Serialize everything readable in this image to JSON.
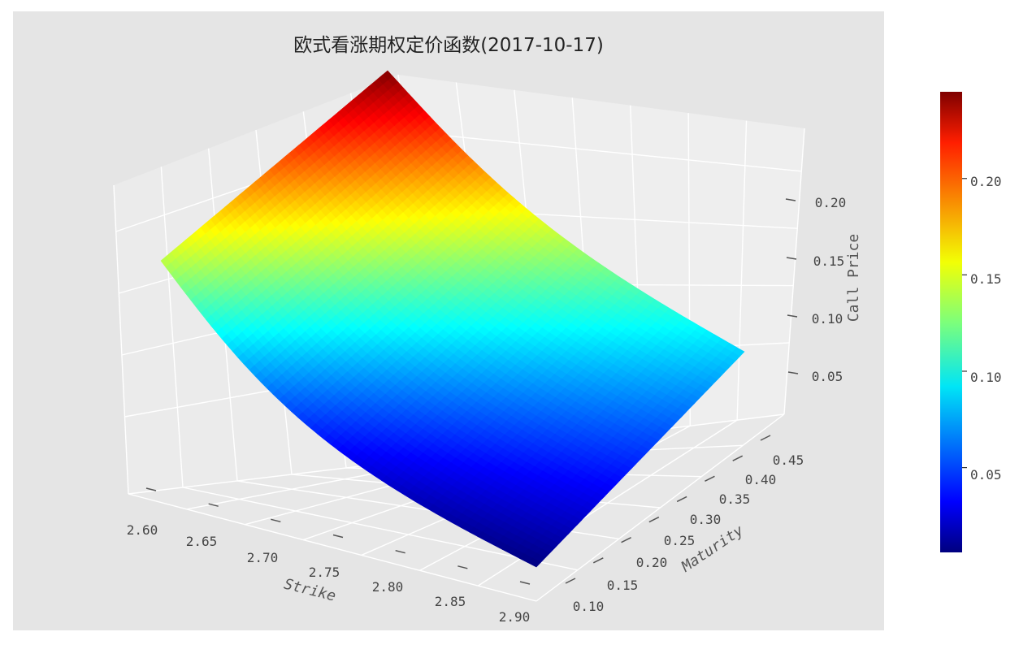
{
  "chart_data": {
    "type": "surface3d",
    "title": "欧式看涨期权定价函数(2017-10-17)",
    "xlabel": "Strike",
    "ylabel": "Maturity",
    "zlabel": "Call Price",
    "x_ticks": [
      "2.60",
      "2.65",
      "2.70",
      "2.75",
      "2.80",
      "2.85",
      "2.90"
    ],
    "y_ticks": [
      "0.10",
      "0.15",
      "0.20",
      "0.25",
      "0.30",
      "0.35",
      "0.40",
      "0.45"
    ],
    "z_ticks": [
      "0.05",
      "0.10",
      "0.15",
      "0.20"
    ],
    "colorbar_ticks": [
      "0.05",
      "0.10",
      "0.15",
      "0.20"
    ],
    "xlim": [
      2.59,
      2.91
    ],
    "ylim": [
      0.09,
      0.47
    ],
    "zlim": [
      0.0,
      0.24
    ],
    "colorbar_range": [
      0.006,
      0.245
    ],
    "colormap": "jet",
    "grid": true,
    "corner_values": [
      {
        "strike": 2.6,
        "maturity": 0.1,
        "call_price": 0.14
      },
      {
        "strike": 2.6,
        "maturity": 0.46,
        "call_price": 0.245
      },
      {
        "strike": 2.9,
        "maturity": 0.1,
        "call_price": 0.006
      },
      {
        "strike": 2.9,
        "maturity": 0.46,
        "call_price": 0.085
      }
    ],
    "colors": {
      "panel": "#e5e5e5",
      "pane_left": "#ebebeb",
      "pane_back": "#f0f0f0",
      "pane_floor": "#e9e9e9",
      "grid": "#ffffff"
    }
  }
}
